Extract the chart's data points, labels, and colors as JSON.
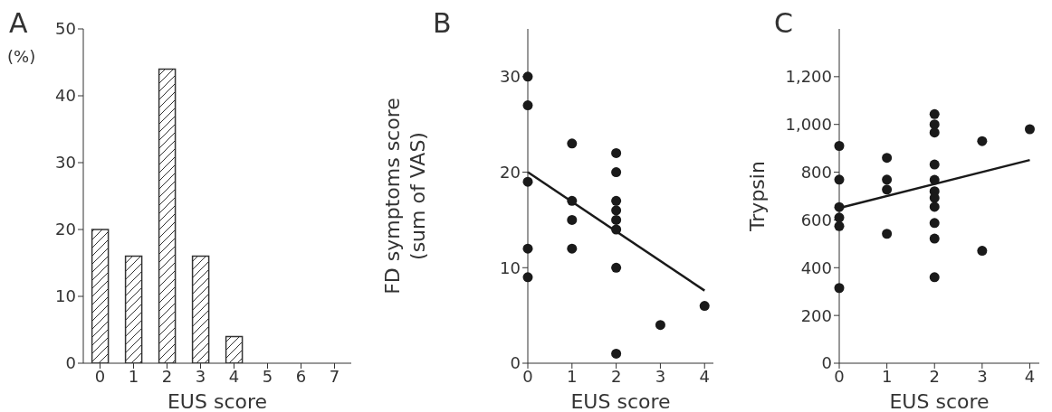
{
  "chart_data": [
    {
      "type": "bar",
      "title": "A",
      "ylabel": "(%)",
      "xlabel": "EUS score",
      "categories": [
        "0",
        "1",
        "2",
        "3",
        "4",
        "5",
        "6",
        "7"
      ],
      "series": [
        {
          "color": "#333333",
          "values": [
            20,
            16,
            44,
            16,
            4,
            0,
            0,
            0
          ]
        }
      ],
      "ylim": [
        0,
        50
      ],
      "yticks": [
        0,
        10,
        20,
        30,
        40,
        50
      ]
    },
    {
      "type": "scatter",
      "title": "B",
      "ylabel": "FD symptoms score\n(sum of VAS)",
      "xlabel": "EUS score",
      "xlim": [
        0,
        4.2
      ],
      "xticks": [
        0,
        1,
        2,
        3,
        4
      ],
      "ylim": [
        0,
        35
      ],
      "yticks": [
        0,
        10,
        20,
        30
      ],
      "series": [
        {
          "type": "scatter",
          "marker": "circle",
          "color": "#1a1a1a",
          "x": [
            0,
            0,
            0,
            0,
            0,
            1,
            1,
            1,
            1,
            2,
            2,
            2,
            2,
            2,
            2,
            2,
            2,
            3,
            4
          ],
          "values": [
            30,
            27,
            19,
            12,
            9,
            23,
            17,
            15,
            12,
            22,
            20,
            17,
            16,
            15,
            14,
            10,
            1,
            4,
            6
          ]
        },
        {
          "type": "line",
          "color": "#1a1a1a",
          "x": [
            0,
            4
          ],
          "values": [
            20,
            7.6
          ]
        }
      ]
    },
    {
      "type": "scatter",
      "title": "C",
      "ylabel": "Trypsin",
      "xlabel": "EUS score",
      "xlim": [
        0,
        4.2
      ],
      "xticks": [
        0,
        1,
        2,
        3,
        4
      ],
      "ylim": [
        0,
        1400
      ],
      "yticks": [
        0,
        200,
        400,
        600,
        800,
        {
          "value": 1000,
          "label": "1,000"
        },
        {
          "value": 1200,
          "label": "1,200"
        }
      ],
      "series": [
        {
          "type": "scatter",
          "marker": "circle",
          "color": "#1a1a1a",
          "x": [
            0,
            0,
            0,
            0,
            0,
            0,
            1,
            1,
            1,
            1,
            2,
            2,
            2,
            2,
            2,
            2,
            2,
            2,
            2,
            2,
            2,
            3,
            3,
            4
          ],
          "values": [
            910,
            769,
            654,
            610,
            574,
            315,
            860,
            769,
            727,
            542,
            1043,
            1000,
            966,
            832,
            768,
            720,
            692,
            655,
            587,
            522,
            360,
            930,
            471,
            980
          ]
        },
        {
          "type": "line",
          "color": "#1a1a1a",
          "x": [
            0,
            4
          ],
          "values": [
            650,
            851
          ]
        }
      ]
    }
  ]
}
